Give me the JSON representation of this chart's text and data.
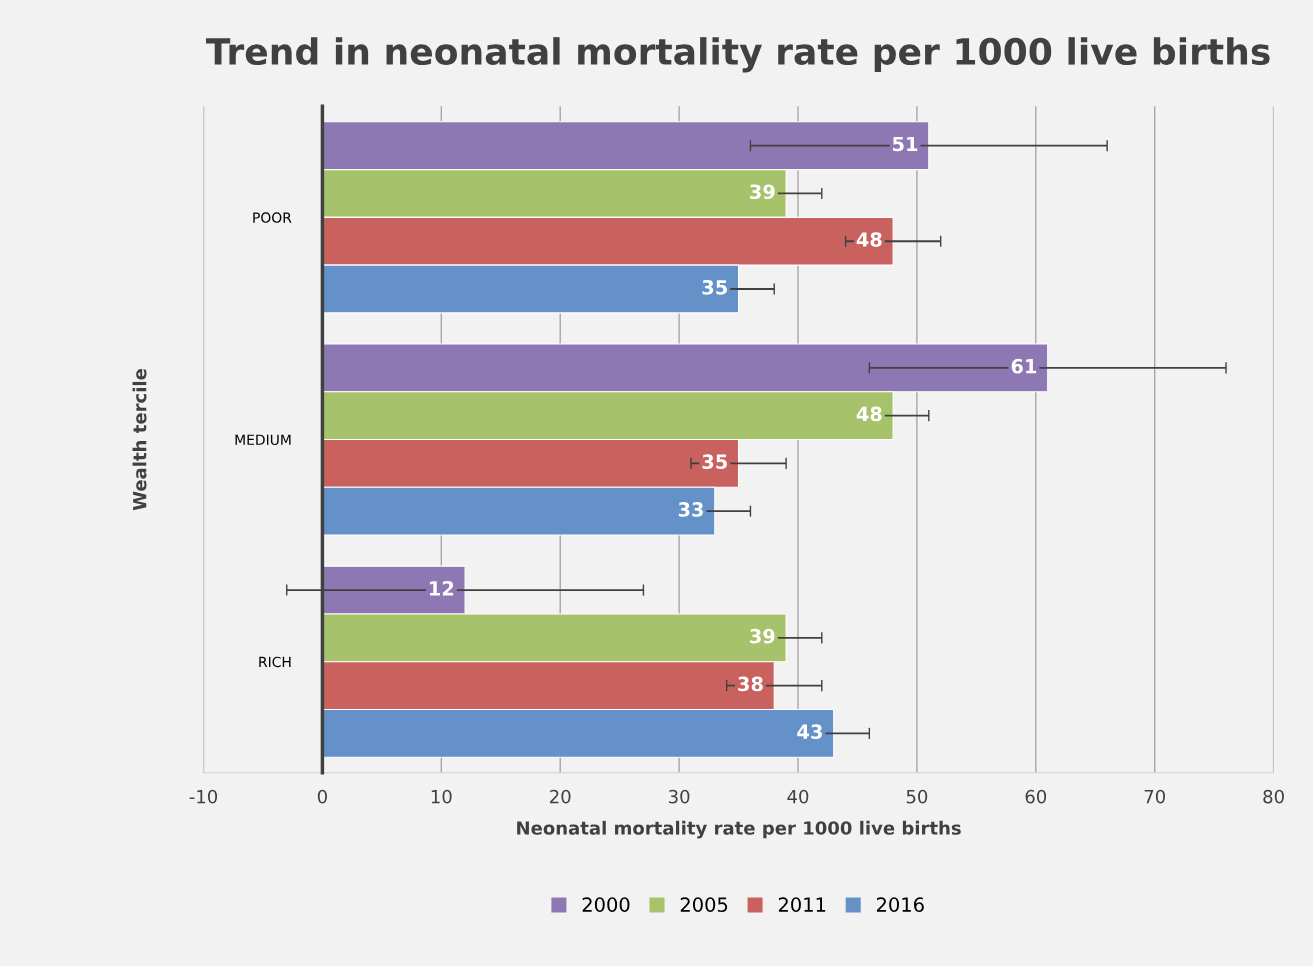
{
  "chart_data": {
    "type": "bar",
    "orientation": "horizontal",
    "title": "Trend in neonatal mortality rate per 1000 live births",
    "xlabel": "Neonatal mortality rate per 1000 live births",
    "ylabel": "Wealth tercile",
    "categories": [
      "POOR",
      "MEDIUM",
      "RICH"
    ],
    "series": [
      {
        "name": "2000",
        "color": "#8e78b3",
        "values": [
          51,
          61,
          12
        ],
        "errors": [
          15,
          15,
          15
        ]
      },
      {
        "name": "2005",
        "color": "#a6c36b",
        "values": [
          39,
          48,
          39
        ],
        "errors": [
          3,
          3,
          3
        ]
      },
      {
        "name": "2011",
        "color": "#c9625f",
        "values": [
          48,
          35,
          38
        ],
        "errors": [
          4,
          4,
          4
        ]
      },
      {
        "name": "2016",
        "color": "#6391c8",
        "values": [
          35,
          33,
          43
        ],
        "errors": [
          3,
          3,
          3
        ]
      }
    ],
    "xlim": [
      -10,
      80
    ],
    "xticks": [
      -10,
      0,
      10,
      20,
      30,
      40,
      50,
      60,
      70,
      80
    ],
    "grid": "x",
    "legend": "bottom",
    "data_labels": true
  }
}
